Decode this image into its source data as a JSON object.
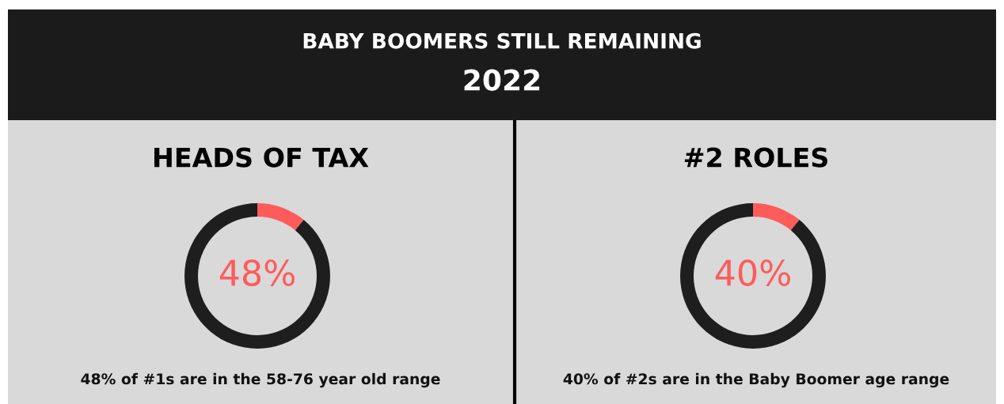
{
  "chart_data": [
    {
      "type": "other",
      "title": "BABY BOOMERS STILL REMAINING",
      "subtitle": "2022"
    },
    {
      "type": "donut",
      "title": "HEADS OF TAX",
      "categories": [
        null,
        null
      ],
      "values": [
        11,
        89
      ],
      "colors": [
        "#fe5b5b",
        "#1e1e1e"
      ],
      "annotations": [
        "48%",
        "48% of #1s are in the 58-76 year old range"
      ]
    },
    {
      "type": "donut",
      "title": "#2 ROLES",
      "categories": [
        null,
        null
      ],
      "values": [
        11,
        89
      ],
      "colors": [
        "#fe5b5b",
        "#1e1e1e"
      ],
      "annotations": [
        "40%",
        "40% of #2s are in the Baby Boomer age range"
      ]
    }
  ]
}
